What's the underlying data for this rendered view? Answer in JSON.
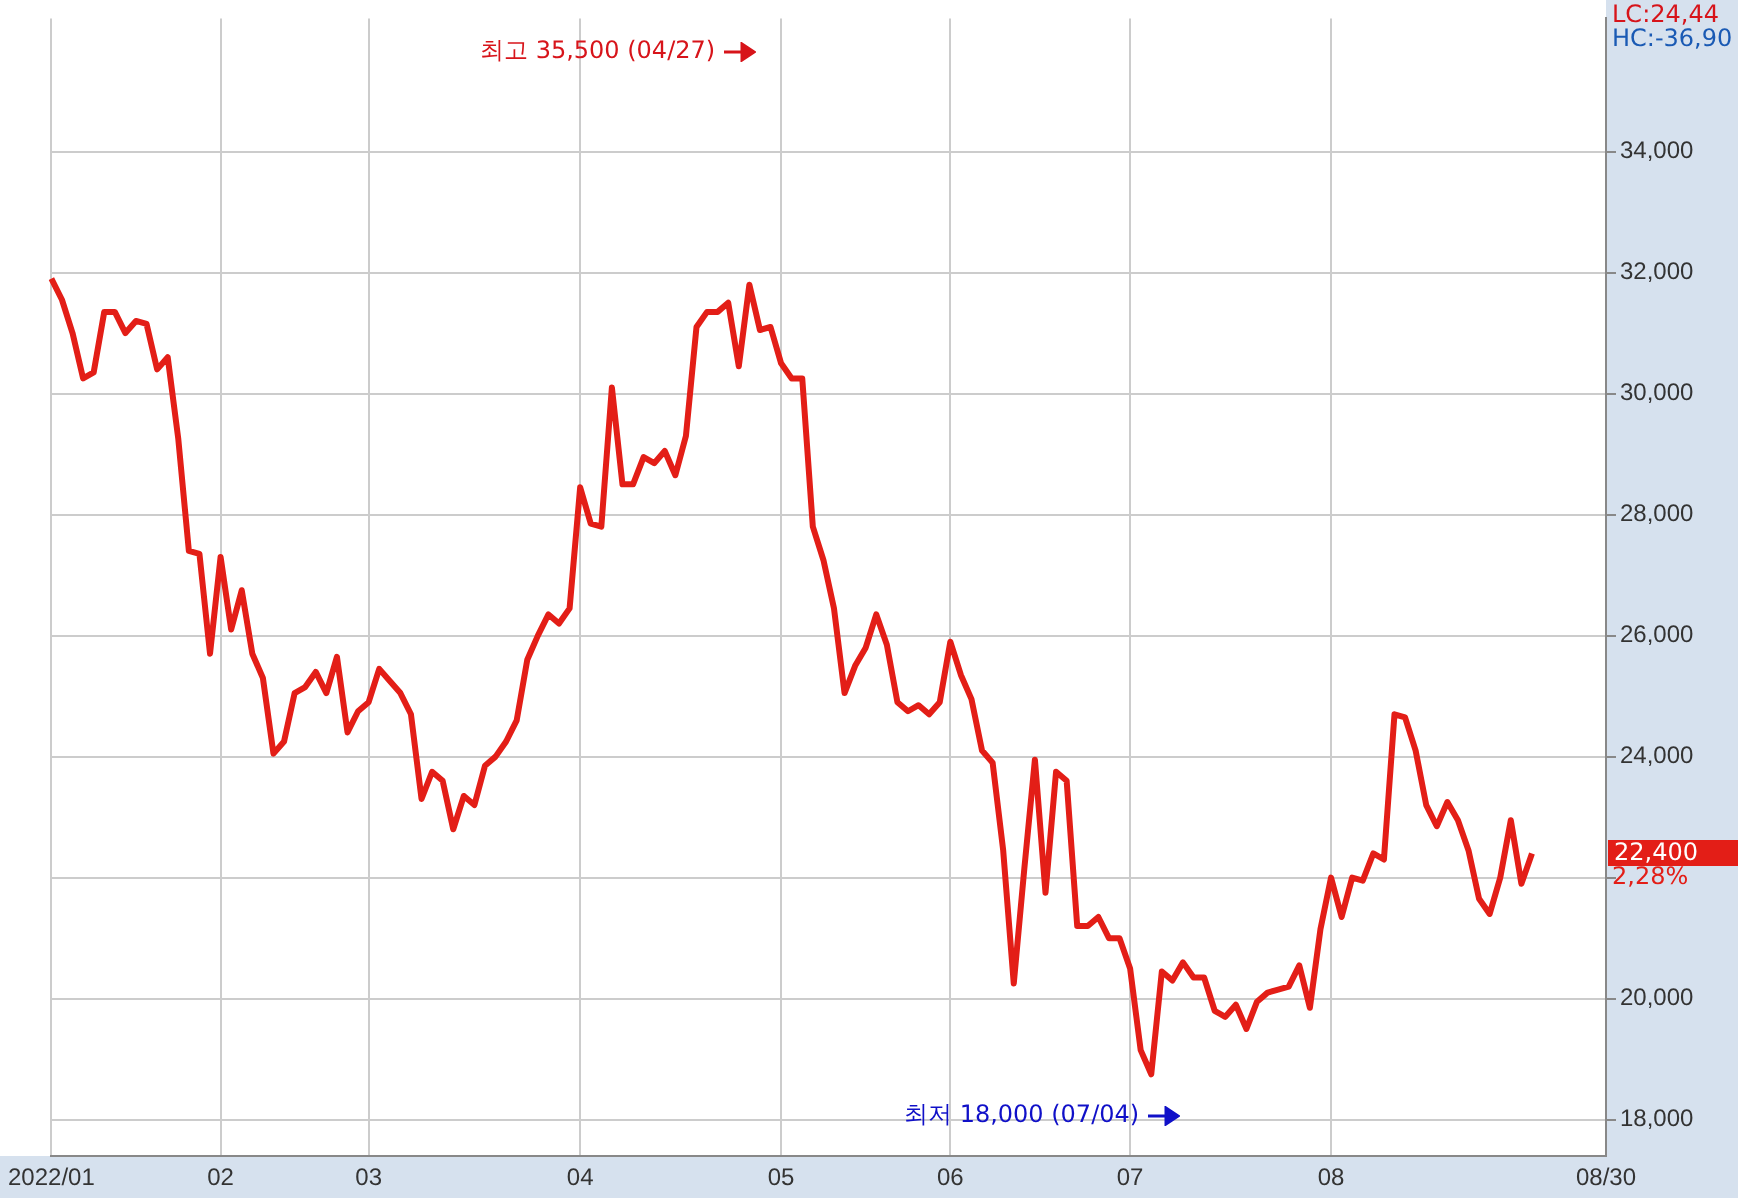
{
  "chart_data": {
    "type": "line",
    "color": "#e31e17",
    "categories": [
      "2022/01",
      null,
      null,
      null,
      null,
      null,
      null,
      null,
      null,
      null,
      null,
      null,
      null,
      null,
      null,
      null,
      "02",
      null,
      null,
      null,
      null,
      null,
      null,
      null,
      null,
      null,
      null,
      null,
      null,
      null,
      "03",
      null,
      null,
      null,
      null,
      null,
      null,
      null,
      null,
      null,
      null,
      null,
      null,
      null,
      null,
      null,
      null,
      null,
      null,
      null,
      "04",
      null,
      null,
      null,
      null,
      null,
      null,
      null,
      null,
      null,
      null,
      null,
      null,
      null,
      null,
      null,
      null,
      null,
      null,
      "05",
      null,
      null,
      null,
      null,
      null,
      null,
      null,
      null,
      null,
      null,
      null,
      null,
      null,
      null,
      null,
      "06",
      null,
      null,
      null,
      null,
      null,
      null,
      null,
      null,
      null,
      null,
      null,
      null,
      null,
      null,
      null,
      null,
      "07",
      null,
      null,
      null,
      null,
      null,
      null,
      null,
      null,
      null,
      null,
      null,
      null,
      null,
      null,
      null,
      null,
      null,
      null,
      "08",
      null,
      null,
      null,
      null,
      null,
      null,
      null,
      null,
      null,
      null,
      null,
      null,
      null,
      null,
      null,
      null,
      null,
      null,
      null,
      null,
      null,
      null,
      null,
      null,
      null,
      "08/30"
    ],
    "values": [
      31900,
      31550,
      31000,
      30250,
      30350,
      31350,
      31350,
      31000,
      31200,
      31150,
      30400,
      30600,
      29250,
      27400,
      27350,
      25700,
      27300,
      26100,
      26750,
      25700,
      25300,
      24050,
      24250,
      25050,
      25150,
      25400,
      25050,
      25650,
      24400,
      24750,
      24900,
      25450,
      25250,
      25050,
      24700,
      23300,
      23750,
      23600,
      22800,
      23350,
      23200,
      23850,
      24000,
      24250,
      24600,
      25600,
      26000,
      26350,
      26200,
      26450,
      28450,
      27850,
      27800,
      30100,
      28500,
      28500,
      28950,
      28850,
      29050,
      28650,
      29300,
      31100,
      31350,
      31350,
      31500,
      30450,
      31800,
      31050,
      31100,
      30500,
      30250,
      30250,
      27800,
      27250,
      26450,
      25050,
      25500,
      25800,
      26350,
      25850,
      24900,
      24750,
      24850,
      24700,
      24900,
      25900,
      25350,
      24950,
      24100,
      23900,
      22450,
      20250,
      22150,
      23950,
      21750,
      23750,
      23600,
      21200,
      21200,
      21350,
      21000,
      21000,
      20500,
      19150,
      18750,
      20450,
      20300,
      20600,
      20350,
      20350,
      19800,
      19700,
      19900,
      19500,
      19950,
      20100,
      20150,
      20200,
      20550,
      19850,
      21150,
      22000,
      21350,
      22000,
      21950,
      22400,
      22300,
      24700,
      24650,
      24100,
      23200,
      22850,
      23250,
      22950,
      22450,
      21650,
      21400,
      22000,
      22950,
      21900,
      22400,
      null,
      null,
      null,
      null,
      null,
      null,
      null
    ],
    "ylim": [
      17400,
      36200
    ],
    "yticks": [
      {
        "value": 18000,
        "label": "18,000"
      },
      {
        "value": 20000,
        "label": "20,000"
      },
      {
        "value": 22000,
        "label": null
      },
      {
        "value": 24000,
        "label": "24,000"
      },
      {
        "value": 26000,
        "label": "26,000"
      },
      {
        "value": 28000,
        "label": "28,000"
      },
      {
        "value": 30000,
        "label": "30,000"
      },
      {
        "value": 32000,
        "label": "32,000"
      },
      {
        "value": 34000,
        "label": "34,000"
      }
    ],
    "grid": true,
    "marker": "none",
    "line_style": "solid",
    "annotations": [
      "최고 35,500 (04/27)",
      "최저 18,000 (07/04)",
      "LC:24,44",
      "HC:-36,90",
      "22,400",
      "2,28%"
    ]
  }
}
